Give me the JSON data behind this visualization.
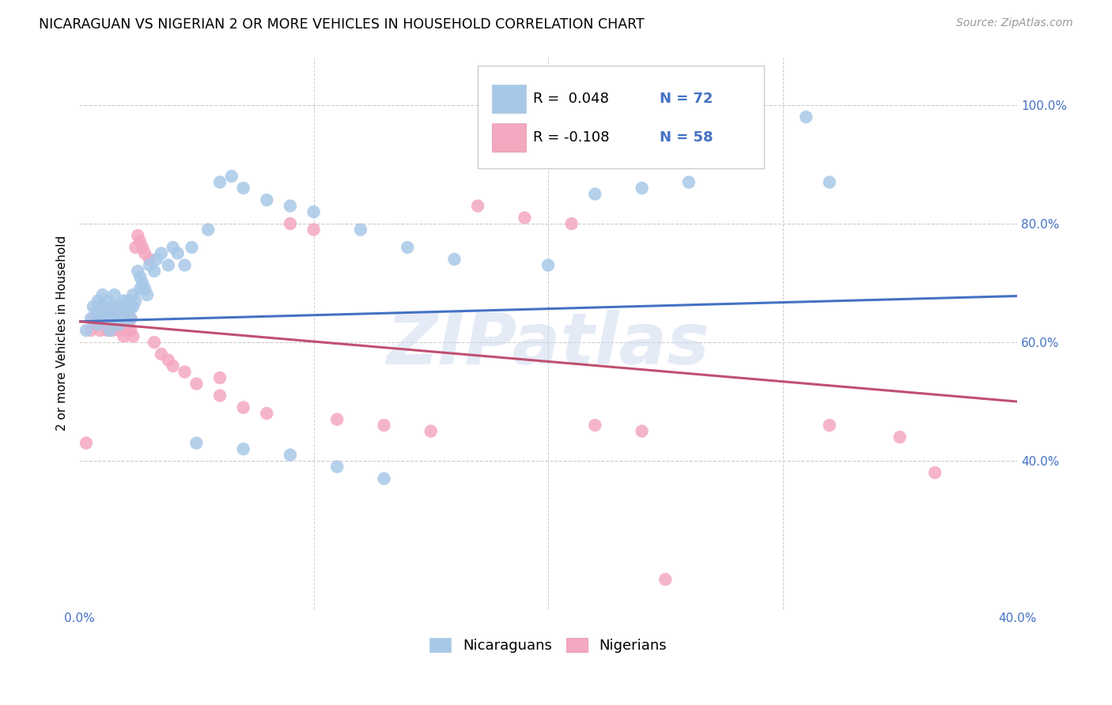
{
  "title": "NICARAGUAN VS NIGERIAN 2 OR MORE VEHICLES IN HOUSEHOLD CORRELATION CHART",
  "source": "Source: ZipAtlas.com",
  "ylabel": "2 or more Vehicles in Household",
  "xlim": [
    0.0,
    0.4
  ],
  "ylim": [
    0.15,
    1.08
  ],
  "xtick_values": [
    0.0,
    0.1,
    0.2,
    0.3,
    0.4
  ],
  "xtick_labels": [
    "0.0%",
    "",
    "",
    "",
    "40.0%"
  ],
  "ytick_values": [
    0.4,
    0.6,
    0.8,
    1.0
  ],
  "ytick_labels": [
    "40.0%",
    "60.0%",
    "80.0%",
    "100.0%"
  ],
  "blue_color": "#a8c8e8",
  "pink_color": "#f4a8c0",
  "blue_line_color": "#4472c4",
  "pink_line_color": "#c05070",
  "legend_blue_R": "0.048",
  "legend_blue_N": "72",
  "legend_pink_R": "-0.108",
  "legend_pink_N": "58",
  "watermark": "ZIPatlas",
  "background_color": "#ffffff",
  "grid_color": "#cccccc",
  "title_fontsize": 12.5,
  "source_fontsize": 10,
  "legend_fontsize": 13,
  "axis_label_fontsize": 11,
  "tick_color": "#4472c4",
  "tick_fontsize": 11,
  "blue_x": [
    0.003,
    0.005,
    0.006,
    0.007,
    0.008,
    0.008,
    0.009,
    0.009,
    0.01,
    0.01,
    0.011,
    0.012,
    0.012,
    0.013,
    0.013,
    0.014,
    0.014,
    0.015,
    0.015,
    0.016,
    0.016,
    0.017,
    0.017,
    0.018,
    0.018,
    0.019,
    0.019,
    0.02,
    0.02,
    0.021,
    0.021,
    0.022,
    0.022,
    0.023,
    0.023,
    0.024,
    0.025,
    0.026,
    0.026,
    0.027,
    0.028,
    0.029,
    0.03,
    0.032,
    0.033,
    0.035,
    0.038,
    0.04,
    0.042,
    0.045,
    0.048,
    0.055,
    0.06,
    0.065,
    0.07,
    0.08,
    0.09,
    0.1,
    0.12,
    0.14,
    0.16,
    0.2,
    0.22,
    0.24,
    0.26,
    0.31,
    0.32,
    0.05,
    0.07,
    0.09,
    0.11,
    0.13
  ],
  "blue_y": [
    0.62,
    0.64,
    0.66,
    0.65,
    0.63,
    0.67,
    0.64,
    0.66,
    0.65,
    0.68,
    0.66,
    0.67,
    0.64,
    0.65,
    0.62,
    0.64,
    0.66,
    0.65,
    0.68,
    0.64,
    0.66,
    0.65,
    0.63,
    0.66,
    0.64,
    0.65,
    0.67,
    0.66,
    0.64,
    0.65,
    0.67,
    0.66,
    0.64,
    0.66,
    0.68,
    0.67,
    0.72,
    0.69,
    0.71,
    0.7,
    0.69,
    0.68,
    0.73,
    0.72,
    0.74,
    0.75,
    0.73,
    0.76,
    0.75,
    0.73,
    0.76,
    0.79,
    0.87,
    0.88,
    0.86,
    0.84,
    0.83,
    0.82,
    0.79,
    0.76,
    0.74,
    0.73,
    0.85,
    0.86,
    0.87,
    0.98,
    0.87,
    0.43,
    0.42,
    0.41,
    0.39,
    0.37
  ],
  "pink_x": [
    0.003,
    0.005,
    0.006,
    0.007,
    0.008,
    0.009,
    0.01,
    0.01,
    0.011,
    0.012,
    0.012,
    0.013,
    0.014,
    0.014,
    0.015,
    0.015,
    0.016,
    0.017,
    0.017,
    0.018,
    0.018,
    0.019,
    0.02,
    0.02,
    0.021,
    0.022,
    0.022,
    0.023,
    0.024,
    0.025,
    0.026,
    0.027,
    0.028,
    0.03,
    0.032,
    0.035,
    0.038,
    0.04,
    0.045,
    0.05,
    0.06,
    0.07,
    0.08,
    0.09,
    0.1,
    0.11,
    0.13,
    0.15,
    0.17,
    0.19,
    0.21,
    0.22,
    0.24,
    0.25,
    0.32,
    0.35,
    0.365,
    0.06
  ],
  "pink_y": [
    0.43,
    0.62,
    0.64,
    0.63,
    0.65,
    0.62,
    0.66,
    0.64,
    0.63,
    0.62,
    0.65,
    0.63,
    0.65,
    0.62,
    0.64,
    0.66,
    0.63,
    0.64,
    0.62,
    0.65,
    0.63,
    0.61,
    0.64,
    0.62,
    0.63,
    0.64,
    0.62,
    0.61,
    0.76,
    0.78,
    0.77,
    0.76,
    0.75,
    0.74,
    0.6,
    0.58,
    0.57,
    0.56,
    0.55,
    0.53,
    0.51,
    0.49,
    0.48,
    0.8,
    0.79,
    0.47,
    0.46,
    0.45,
    0.83,
    0.81,
    0.8,
    0.46,
    0.45,
    0.2,
    0.46,
    0.44,
    0.38,
    0.54
  ],
  "blue_line_x0": 0.0,
  "blue_line_y0": 0.635,
  "blue_line_x1": 0.4,
  "blue_line_y1": 0.678,
  "pink_line_x0": 0.0,
  "pink_line_y0": 0.635,
  "pink_line_x1": 0.4,
  "pink_line_y1": 0.5
}
